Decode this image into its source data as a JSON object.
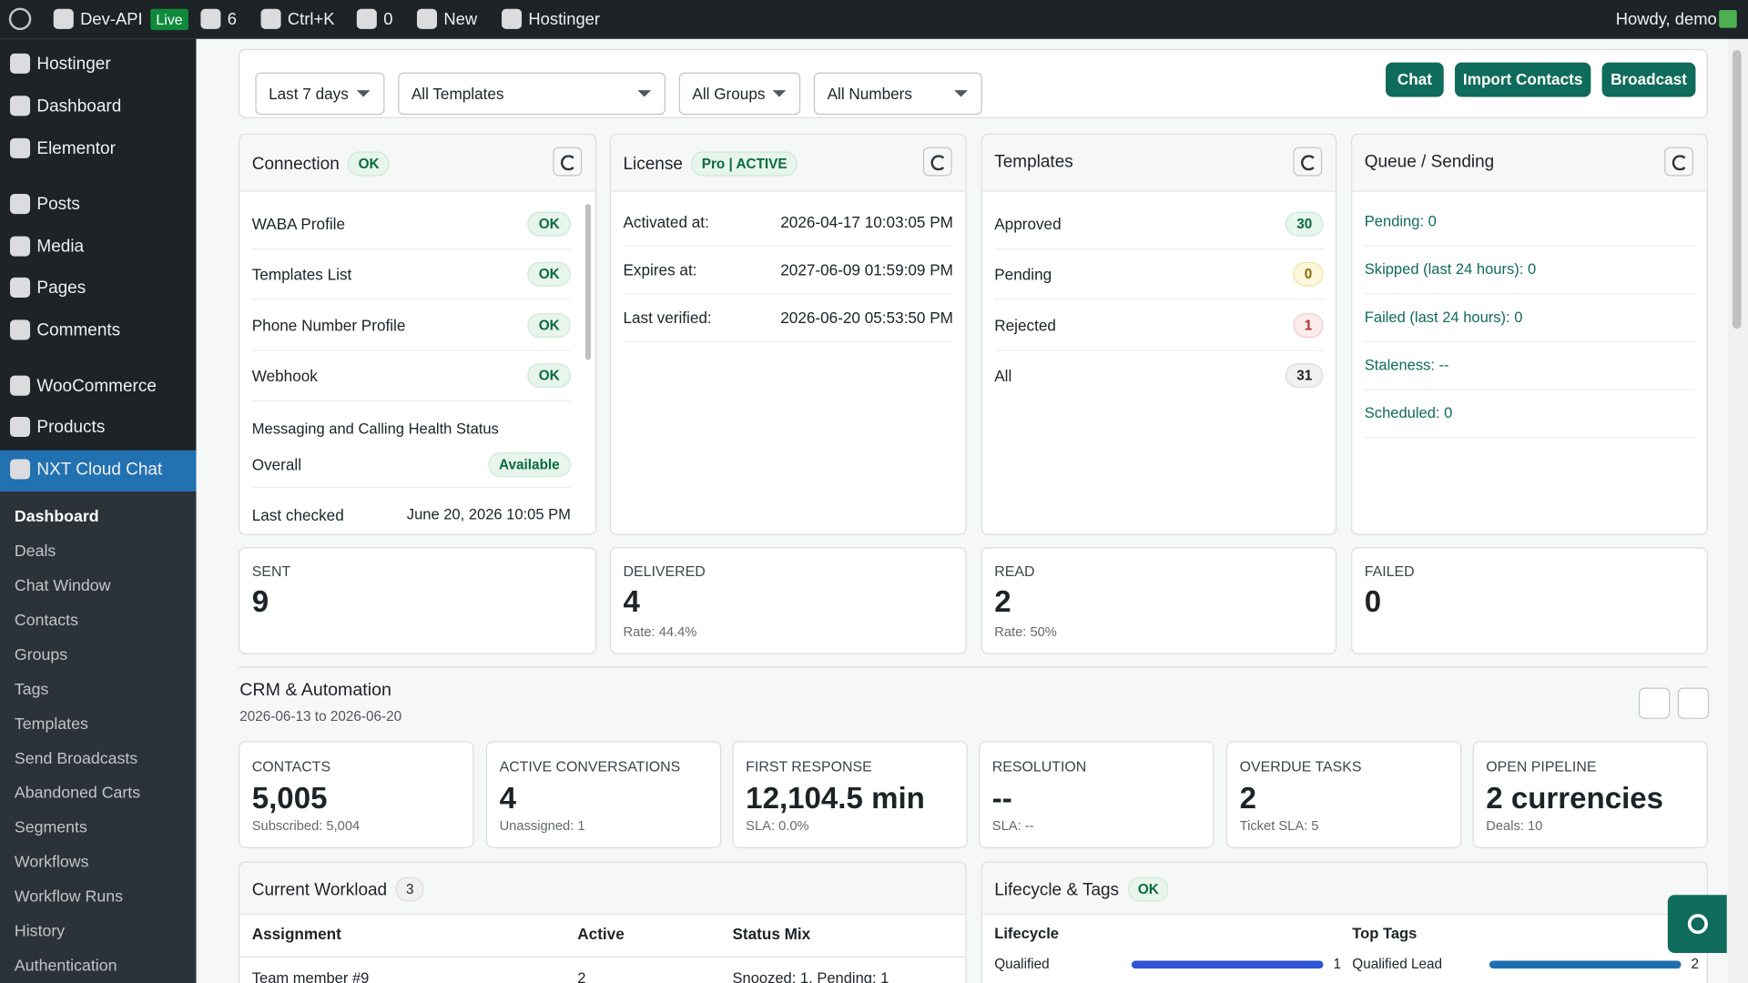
{
  "admin_bar": {
    "site": "Dev-API",
    "live": "Live",
    "updates": "6",
    "search": "Ctrl+K",
    "comments": "0",
    "new": "New",
    "hostinger": "Hostinger",
    "howdy": "Howdy, demo"
  },
  "sidebar": {
    "menu": [
      "Hostinger",
      "Dashboard",
      "Elementor",
      "Posts",
      "Media",
      "Pages",
      "Comments",
      "WooCommerce",
      "Products",
      "NXT Cloud Chat"
    ],
    "submenu": [
      "Dashboard",
      "Deals",
      "Chat Window",
      "Contacts",
      "Groups",
      "Tags",
      "Templates",
      "Send Broadcasts",
      "Abandoned Carts",
      "Segments",
      "Workflows",
      "Workflow Runs",
      "History",
      "Authentication"
    ]
  },
  "filters": [
    "Last 7 days",
    "All Templates",
    "All Groups",
    "All Numbers"
  ],
  "actions": [
    "Chat",
    "Import Contacts",
    "Broadcast"
  ],
  "connection": {
    "title": "Connection",
    "status": "OK",
    "rows": [
      {
        "label": "WABA Profile",
        "status": "OK"
      },
      {
        "label": "Templates List",
        "status": "OK"
      },
      {
        "label": "Phone Number Profile",
        "status": "OK"
      },
      {
        "label": "Webhook",
        "status": "OK"
      }
    ],
    "health_title": "Messaging and Calling Health Status",
    "overall_label": "Overall",
    "overall_status": "Available",
    "last_checked_label": "Last checked",
    "last_checked": "June 20, 2026 10:05 PM"
  },
  "license": {
    "title": "License",
    "status": "Pro | ACTIVE",
    "rows": [
      {
        "label": "Activated at:",
        "value": "2026-04-17 10:03:05 PM"
      },
      {
        "label": "Expires at:",
        "value": "2027-06-09 01:59:09 PM"
      },
      {
        "label": "Last verified:",
        "value": "2026-06-20 05:53:50 PM"
      }
    ]
  },
  "templates": {
    "title": "Templates",
    "rows": [
      {
        "label": "Approved",
        "count": 30
      },
      {
        "label": "Pending",
        "count": 0
      },
      {
        "label": "Rejected",
        "count": 1
      },
      {
        "label": "All",
        "count": 31
      }
    ]
  },
  "queue": {
    "title": "Queue / Sending",
    "rows": [
      "Pending: 0",
      "Skipped (last 24 hours): 0",
      "Failed (last 24 hours): 0",
      "Staleness: --",
      "Scheduled: 0"
    ]
  },
  "stats": [
    {
      "label": "SENT",
      "value": 9
    },
    {
      "label": "DELIVERED",
      "value": 4,
      "rate": "Rate: 44.4%"
    },
    {
      "label": "READ",
      "value": 2,
      "rate": "Rate: 50%"
    },
    {
      "label": "FAILED",
      "value": 0
    }
  ],
  "crm": {
    "title": "CRM & Automation",
    "range": "2026-06-13 to 2026-06-20",
    "kpis": [
      {
        "label": "CONTACTS",
        "value": "5,005",
        "sub": "Subscribed: 5,004"
      },
      {
        "label": "ACTIVE CONVERSATIONS",
        "value": "4",
        "sub": "Unassigned: 1"
      },
      {
        "label": "FIRST RESPONSE",
        "value": "12,104.5 min",
        "sub": "SLA: 0.0%"
      },
      {
        "label": "RESOLUTION",
        "value": "--",
        "sub": "SLA: --"
      },
      {
        "label": "OVERDUE TASKS",
        "value": "2",
        "sub": "Ticket SLA: 5"
      },
      {
        "label": "OPEN PIPELINE",
        "value": "2 currencies",
        "sub": "Deals: 10"
      }
    ]
  },
  "workload": {
    "title": "Current Workload",
    "count": 3,
    "columns": [
      "Assignment",
      "Active",
      "Status Mix"
    ],
    "rows": [
      [
        "Team member #9",
        "2",
        "Snoozed: 1, Pending: 1"
      ]
    ]
  },
  "lifecycle": {
    "title": "Lifecycle & Tags",
    "status": "OK",
    "lifecycle_title": "Lifecycle",
    "tags_title": "Top Tags",
    "lifecycle": [
      {
        "name": "Qualified",
        "value": 1
      }
    ],
    "tags": [
      {
        "name": "Qualified Lead",
        "value": 2
      }
    ]
  }
}
